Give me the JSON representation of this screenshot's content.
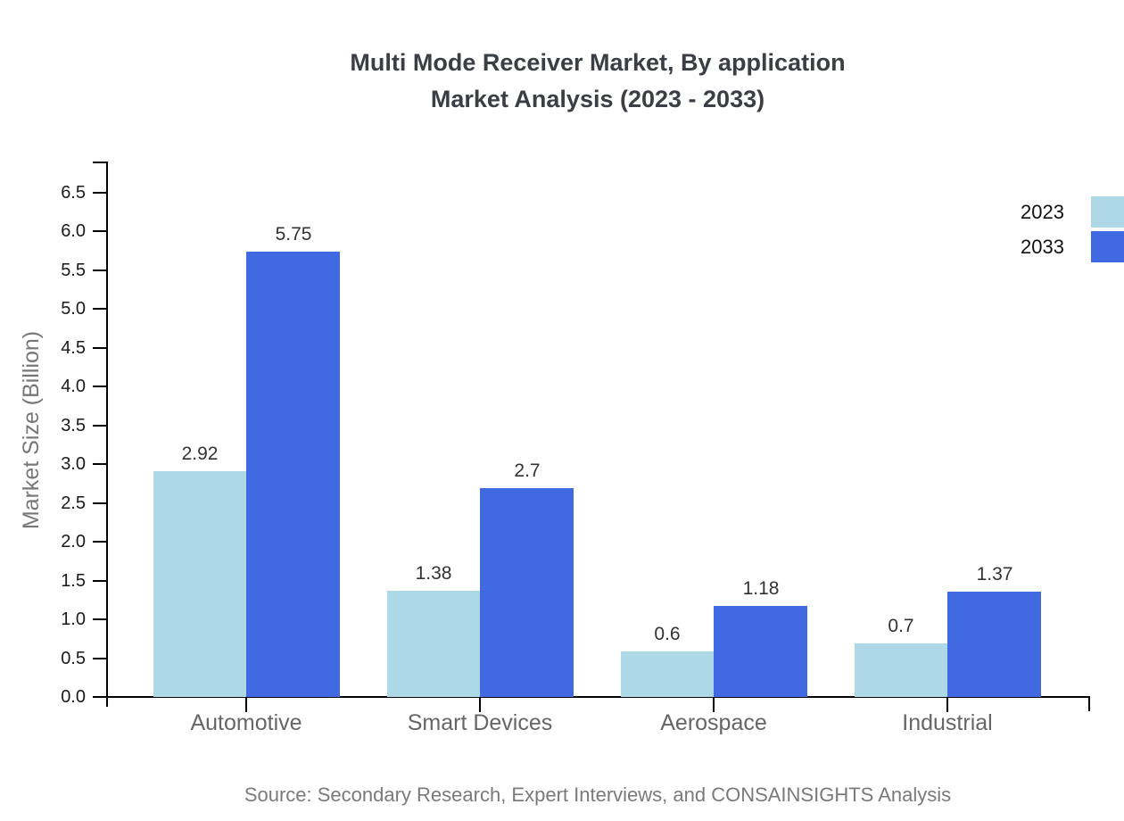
{
  "title": {
    "line1": "Multi Mode Receiver Market, By application",
    "line2": "Market Analysis (2023 - 2033)"
  },
  "chart_data": {
    "type": "bar",
    "categories": [
      "Automotive",
      "Smart Devices",
      "Aerospace",
      "Industrial"
    ],
    "series": [
      {
        "name": "2023",
        "color": "#ADD8E6",
        "values": [
          2.92,
          1.38,
          0.6,
          0.7
        ]
      },
      {
        "name": "2033",
        "color": "#4169E1",
        "values": [
          5.75,
          2.7,
          1.18,
          1.37
        ]
      }
    ],
    "xlabel": "",
    "ylabel": "Market Size (Billion)",
    "ylim": [
      0,
      6.5
    ],
    "ytick_step": 0.5,
    "yticks": [
      "0.0",
      "0.5",
      "1.0",
      "1.5",
      "2.0",
      "2.5",
      "3.0",
      "3.5",
      "4.0",
      "4.5",
      "5.0",
      "5.5",
      "6.0",
      "6.5"
    ],
    "grid": false,
    "bar_value_labels": true,
    "legend_position": "top-right",
    "axis_color": "#000000"
  },
  "source": "Source: Secondary Research, Expert Interviews, and CONSAINSIGHTS Analysis"
}
